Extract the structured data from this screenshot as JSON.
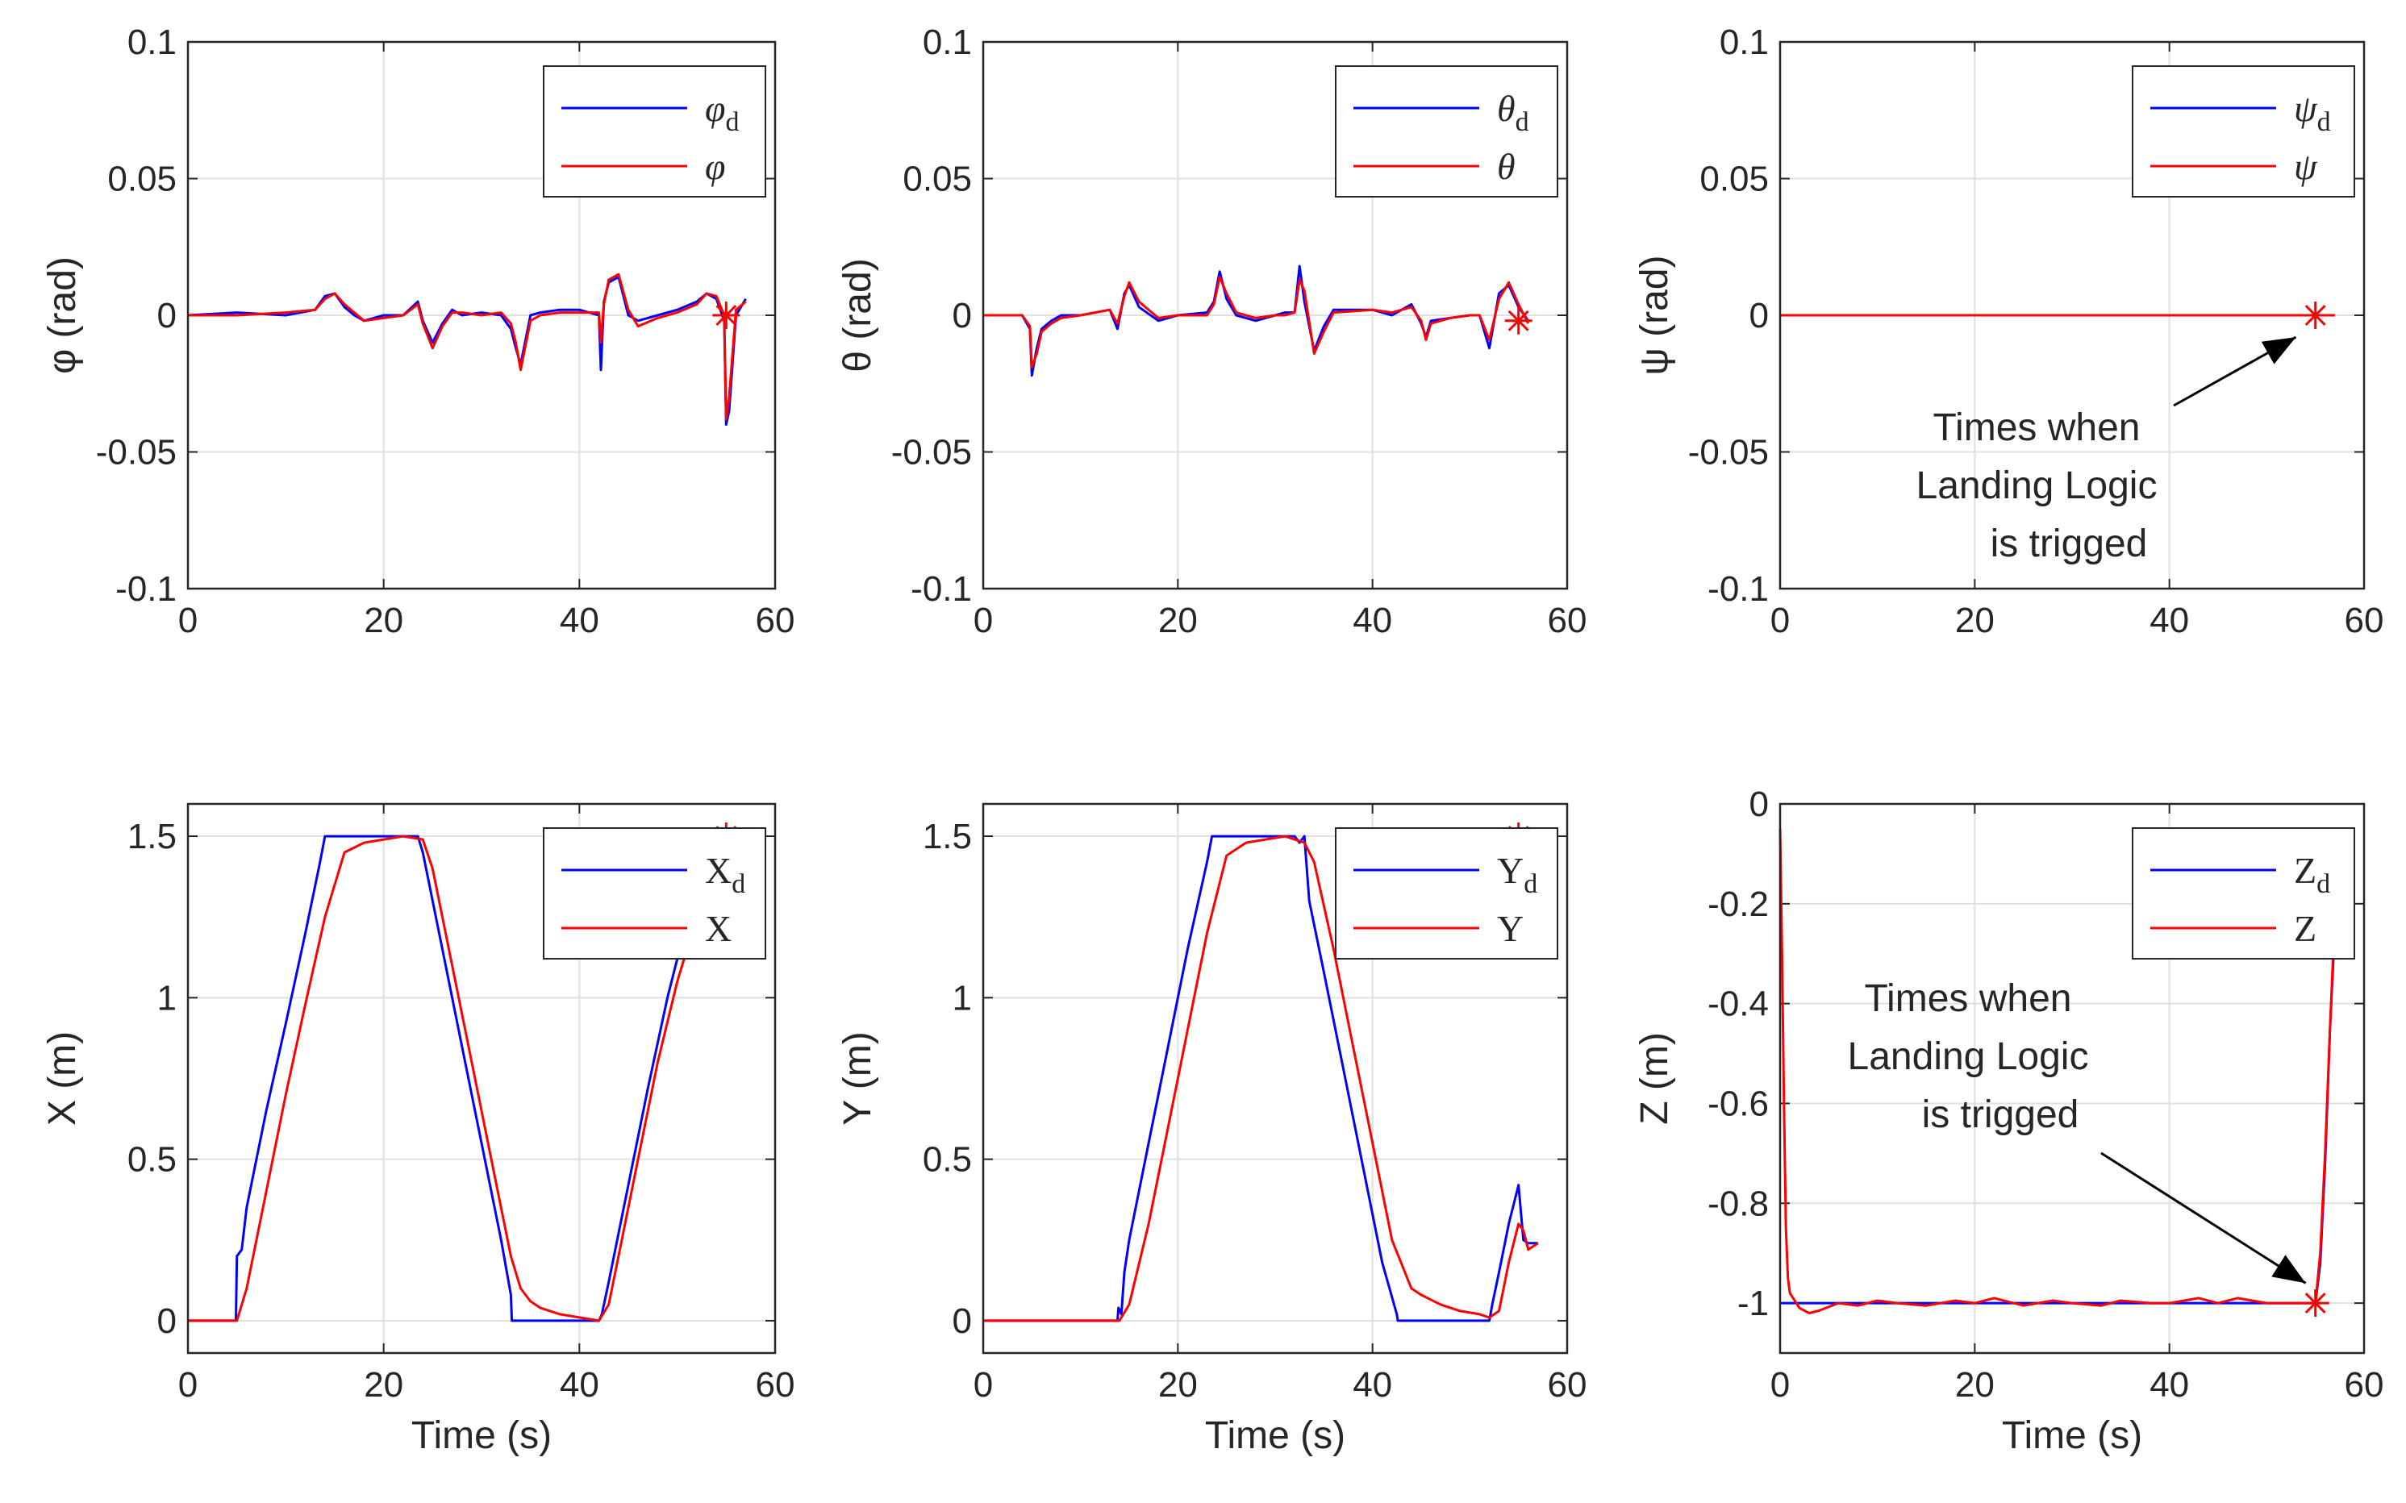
{
  "figure": {
    "background": "#ffffff",
    "colors": {
      "desired": "#0000ff",
      "actual": "#ff0000",
      "axis": "#262626",
      "grid": "#e0e0e0"
    }
  },
  "chart_data": [
    {
      "id": "phi",
      "type": "line",
      "grid": true,
      "xlim": [
        0,
        60
      ],
      "ylim": [
        -0.1,
        0.1
      ],
      "xticks": [
        "0",
        "20",
        "40",
        "60"
      ],
      "yticks": [
        "-0.1",
        "-0.05",
        "0",
        "0.05",
        "0.1"
      ],
      "xlabel": "",
      "ylabel": "φ (rad)",
      "legend": {
        "position": "top-right",
        "entries": [
          {
            "base": "φ",
            "sub": "d"
          },
          {
            "base": "φ",
            "sub": ""
          }
        ]
      },
      "series": [
        {
          "name": "φd",
          "color": "#0000ff",
          "x": [
            0,
            5,
            10,
            13,
            14,
            15,
            16,
            17,
            18,
            20,
            22,
            23.5,
            24,
            25,
            26,
            27,
            28,
            30,
            32,
            33,
            33.5,
            34,
            35,
            36,
            38,
            40,
            42,
            42.2,
            42.5,
            43,
            44,
            45,
            46,
            48,
            50,
            52,
            53,
            54,
            54.8,
            55,
            55.3,
            56,
            57
          ],
          "y": [
            0,
            0.001,
            0,
            0.002,
            0.007,
            0.008,
            0.003,
            0,
            -0.002,
            0,
            0,
            0.005,
            -0.002,
            -0.01,
            -0.003,
            0.002,
            0,
            0.001,
            0,
            -0.005,
            -0.012,
            -0.018,
            0,
            0.001,
            0.002,
            0.002,
            0,
            -0.02,
            0.005,
            0.012,
            0.014,
            0,
            -0.002,
            0,
            0.002,
            0.005,
            0.008,
            0.006,
            -0.002,
            -0.04,
            -0.035,
            0,
            0.006
          ]
        },
        {
          "name": "φ",
          "color": "#ff0000",
          "x": [
            0,
            5,
            10,
            13,
            14,
            15,
            16,
            17,
            18,
            20,
            22,
            23.5,
            24,
            25,
            26,
            27,
            28,
            30,
            32,
            33,
            33.5,
            34,
            35,
            36,
            38,
            40,
            42,
            42.2,
            42.5,
            43,
            44,
            45,
            46,
            48,
            50,
            52,
            53,
            54,
            54.8,
            55,
            55.3,
            56,
            57
          ],
          "y": [
            0,
            0,
            0.001,
            0.002,
            0.006,
            0.008,
            0.004,
            0.001,
            -0.002,
            -0.001,
            0,
            0.004,
            -0.003,
            -0.012,
            -0.004,
            0.001,
            0.001,
            0,
            0.001,
            -0.003,
            -0.01,
            -0.02,
            -0.002,
            0,
            0.001,
            0.001,
            0.001,
            -0.01,
            0.004,
            0.013,
            0.015,
            0.002,
            -0.004,
            -0.001,
            0.001,
            0.004,
            0.008,
            0.007,
            0,
            -0.038,
            -0.03,
            0.002,
            0.005
          ]
        }
      ],
      "markers": [
        {
          "x": 55,
          "y": 0,
          "symbol": "*",
          "color": "#ff0000"
        }
      ]
    },
    {
      "id": "theta",
      "type": "line",
      "grid": true,
      "xlim": [
        0,
        60
      ],
      "ylim": [
        -0.1,
        0.1
      ],
      "xticks": [
        "0",
        "20",
        "40",
        "60"
      ],
      "yticks": [
        "-0.1",
        "-0.05",
        "0",
        "0.05",
        "0.1"
      ],
      "xlabel": "",
      "ylabel": "θ (rad)",
      "legend": {
        "position": "top-right",
        "entries": [
          {
            "base": "θ",
            "sub": "d"
          },
          {
            "base": "θ",
            "sub": ""
          }
        ]
      },
      "series": [
        {
          "name": "θd",
          "color": "#0000ff",
          "x": [
            0,
            4,
            4.8,
            5,
            5.5,
            6,
            7,
            8,
            10,
            13,
            13.8,
            14.5,
            15,
            16,
            18,
            20,
            23,
            23.7,
            24.3,
            25,
            26,
            28,
            30,
            31,
            32,
            32.5,
            33,
            34,
            35,
            36,
            40,
            42,
            44,
            45,
            45.5,
            46,
            48,
            50,
            51,
            52,
            53,
            54,
            55,
            56
          ],
          "y": [
            0,
            0,
            -0.005,
            -0.022,
            -0.012,
            -0.005,
            -0.002,
            0,
            0,
            0.002,
            -0.005,
            0.008,
            0.011,
            0.003,
            -0.002,
            0,
            0.001,
            0.005,
            0.016,
            0.006,
            0,
            -0.002,
            0,
            0.001,
            0.001,
            0.018,
            0.005,
            -0.013,
            -0.004,
            0.002,
            0.002,
            0,
            0.004,
            -0.003,
            -0.008,
            -0.002,
            -0.001,
            0,
            0,
            -0.012,
            0.008,
            0.011,
            0.003,
            -0.002
          ]
        },
        {
          "name": "θ",
          "color": "#ff0000",
          "x": [
            0,
            4,
            4.8,
            5,
            5.5,
            6,
            7,
            8,
            10,
            13,
            13.8,
            14.5,
            15,
            16,
            18,
            20,
            23,
            23.7,
            24.3,
            25,
            26,
            28,
            30,
            31,
            32,
            32.5,
            33,
            34,
            35,
            36,
            40,
            42,
            44,
            45,
            45.5,
            46,
            48,
            50,
            51,
            52,
            53,
            54,
            55,
            56
          ],
          "y": [
            0,
            0,
            -0.004,
            -0.019,
            -0.014,
            -0.006,
            -0.003,
            -0.001,
            0,
            0.002,
            -0.003,
            0.007,
            0.012,
            0.005,
            -0.001,
            0,
            0,
            0.004,
            0.014,
            0.008,
            0.001,
            -0.001,
            0,
            0,
            0.001,
            0.013,
            0.009,
            -0.014,
            -0.006,
            0.001,
            0.002,
            0.001,
            0.003,
            -0.002,
            -0.009,
            -0.003,
            -0.001,
            0,
            0,
            -0.009,
            0.006,
            0.012,
            0.004,
            -0.003
          ]
        }
      ],
      "markers": [
        {
          "x": 55,
          "y": -0.002,
          "symbol": "*",
          "color": "#ff0000"
        }
      ]
    },
    {
      "id": "psi",
      "type": "line",
      "grid": true,
      "xlim": [
        0,
        60
      ],
      "ylim": [
        -0.1,
        0.1
      ],
      "xticks": [
        "0",
        "20",
        "40",
        "60"
      ],
      "yticks": [
        "-0.1",
        "-0.05",
        "0",
        "0.05",
        "0.1"
      ],
      "xlabel": "",
      "ylabel": "ψ (rad)",
      "legend": {
        "position": "top-right",
        "entries": [
          {
            "base": "ψ",
            "sub": "d"
          },
          {
            "base": "ψ",
            "sub": ""
          }
        ]
      },
      "series": [
        {
          "name": "ψd",
          "color": "#0000ff",
          "x": [
            0,
            57
          ],
          "y": [
            0,
            0
          ]
        },
        {
          "name": "ψ",
          "color": "#ff0000",
          "x": [
            0,
            57
          ],
          "y": [
            0,
            0
          ]
        }
      ],
      "markers": [
        {
          "x": 55,
          "y": 0,
          "symbol": "*",
          "color": "#ff0000"
        }
      ],
      "annotation": {
        "lines": [
          "Times when",
          "Landing Logic",
          "is trigged"
        ],
        "arrow_to": {
          "x": 53,
          "y": -0.008
        }
      }
    },
    {
      "id": "x",
      "type": "line",
      "grid": true,
      "xlim": [
        0,
        60
      ],
      "ylim": [
        -0.1,
        1.6
      ],
      "xticks": [
        "0",
        "20",
        "40",
        "60"
      ],
      "yticks": [
        "0",
        "0.5",
        "1",
        "1.5"
      ],
      "xlabel": "Time (s)",
      "ylabel": "X (m)",
      "legend": {
        "position": "top-right",
        "entries": [
          {
            "base": "X",
            "sub": "d"
          },
          {
            "base": "X",
            "sub": ""
          }
        ]
      },
      "series": [
        {
          "name": "Xd",
          "color": "#0000ff",
          "x": [
            0,
            4.9,
            5,
            5.5,
            6,
            8,
            10,
            12,
            13.5,
            14,
            23.5,
            24,
            26,
            28,
            30,
            32,
            33,
            33.1,
            35,
            40,
            42,
            42.3,
            43,
            45,
            47,
            49,
            50,
            52,
            54,
            55
          ],
          "y": [
            0,
            0,
            0.2,
            0.22,
            0.35,
            0.65,
            0.92,
            1.2,
            1.42,
            1.5,
            1.5,
            1.45,
            1.15,
            0.85,
            0.55,
            0.25,
            0.08,
            0,
            0,
            0,
            0,
            0.02,
            0.12,
            0.42,
            0.72,
            1.0,
            1.12,
            1.3,
            1.45,
            1.52
          ]
        },
        {
          "name": "X",
          "color": "#ff0000",
          "x": [
            0,
            5,
            6,
            8,
            10,
            12,
            14,
            16,
            18,
            20,
            22,
            24,
            25,
            27,
            29,
            31,
            33,
            34,
            35,
            36,
            38,
            40,
            42,
            43,
            44,
            46,
            48,
            50,
            52,
            54,
            55
          ],
          "y": [
            0,
            0,
            0.1,
            0.4,
            0.7,
            0.98,
            1.25,
            1.45,
            1.48,
            1.49,
            1.5,
            1.49,
            1.4,
            1.1,
            0.8,
            0.5,
            0.2,
            0.1,
            0.06,
            0.04,
            0.02,
            0.01,
            0,
            0.05,
            0.2,
            0.5,
            0.8,
            1.05,
            1.25,
            1.42,
            1.52
          ]
        }
      ],
      "markers": [
        {
          "x": 55,
          "y": 1.5,
          "symbol": "*",
          "color": "#ff0000"
        }
      ]
    },
    {
      "id": "y",
      "type": "line",
      "grid": true,
      "xlim": [
        0,
        60
      ],
      "ylim": [
        -0.1,
        1.6
      ],
      "xticks": [
        "0",
        "20",
        "40",
        "60"
      ],
      "yticks": [
        "0",
        "0.5",
        "1",
        "1.5"
      ],
      "xlabel": "Time (s)",
      "ylabel": "Y (m)",
      "legend": {
        "position": "top-right",
        "entries": [
          {
            "base": "Y",
            "sub": "d"
          },
          {
            "base": "Y",
            "sub": ""
          }
        ]
      },
      "series": [
        {
          "name": "Yd",
          "color": "#0000ff",
          "x": [
            0,
            13.8,
            13.9,
            14.2,
            14.5,
            15,
            17,
            19,
            21,
            23,
            23.5,
            24,
            32,
            32.5,
            33,
            33.5,
            35,
            37,
            39,
            41,
            42.5,
            42.6,
            45,
            48,
            50,
            52,
            52.3,
            53,
            54,
            55,
            55.5,
            56,
            57
          ],
          "y": [
            0,
            0,
            0.04,
            0.02,
            0.15,
            0.25,
            0.55,
            0.85,
            1.15,
            1.42,
            1.5,
            1.5,
            1.5,
            1.48,
            1.5,
            1.3,
            1.08,
            0.78,
            0.48,
            0.18,
            0.02,
            0,
            0,
            0,
            0,
            0,
            0.05,
            0.15,
            0.3,
            0.42,
            0.25,
            0.24,
            0.24
          ]
        },
        {
          "name": "Y",
          "color": "#ff0000",
          "x": [
            0,
            14,
            15,
            17,
            19,
            21,
            23,
            25,
            27,
            29,
            31,
            32,
            33,
            34,
            36,
            38,
            40,
            42,
            44,
            45,
            47,
            49,
            51,
            52,
            53,
            54,
            55,
            55.5,
            56,
            57
          ],
          "y": [
            0,
            0,
            0.05,
            0.3,
            0.6,
            0.9,
            1.2,
            1.44,
            1.48,
            1.49,
            1.5,
            1.49,
            1.48,
            1.42,
            1.15,
            0.85,
            0.55,
            0.25,
            0.1,
            0.08,
            0.05,
            0.03,
            0.02,
            0.01,
            0.03,
            0.18,
            0.3,
            0.28,
            0.22,
            0.24
          ]
        }
      ],
      "markers": [
        {
          "x": 55,
          "y": 1.5,
          "symbol": "*",
          "color": "#ff0000"
        }
      ]
    },
    {
      "id": "z",
      "type": "line",
      "grid": true,
      "xlim": [
        0,
        60
      ],
      "ylim": [
        -1.1,
        0
      ],
      "xticks": [
        "0",
        "20",
        "40",
        "60"
      ],
      "yticks": [
        "0",
        "-0.2",
        "-0.4",
        "-0.6",
        "-0.8",
        "-1"
      ],
      "xlabel": "Time (s)",
      "ylabel": "Z (m)",
      "legend": {
        "position": "top-right",
        "entries": [
          {
            "base": "Z",
            "sub": "d"
          },
          {
            "base": "Z",
            "sub": ""
          }
        ]
      },
      "series": [
        {
          "name": "Zd",
          "color": "#0000ff",
          "x": [
            0,
            54.5,
            55,
            55.5,
            56,
            56.5,
            57
          ],
          "y": [
            -1,
            -1,
            -1,
            -0.92,
            -0.72,
            -0.45,
            -0.25
          ]
        },
        {
          "name": "Z",
          "color": "#ff0000",
          "x": [
            0,
            0.2,
            0.4,
            0.6,
            0.8,
            1,
            2,
            3,
            4,
            6,
            8,
            10,
            12,
            15,
            18,
            20,
            22,
            25,
            28,
            30,
            33,
            35,
            38,
            40,
            43,
            45,
            47,
            50,
            53,
            54,
            55,
            55.5,
            56,
            56.5,
            57
          ],
          "y": [
            -0.05,
            -0.3,
            -0.6,
            -0.85,
            -0.95,
            -0.98,
            -1.01,
            -1.02,
            -1.015,
            -1,
            -1.005,
            -0.995,
            -1,
            -1.005,
            -0.995,
            -1,
            -0.99,
            -1.005,
            -0.995,
            -1,
            -1.005,
            -0.995,
            -1,
            -1,
            -0.99,
            -1,
            -0.99,
            -1,
            -1,
            -1,
            -1,
            -0.9,
            -0.7,
            -0.45,
            -0.22
          ]
        }
      ],
      "markers": [
        {
          "x": 55,
          "y": -1,
          "symbol": "*",
          "color": "#ff0000"
        }
      ],
      "annotation": {
        "lines": [
          "Times when",
          "Landing Logic",
          "is trigged"
        ],
        "arrow_to": {
          "x": 54,
          "y": -0.96
        }
      }
    }
  ]
}
